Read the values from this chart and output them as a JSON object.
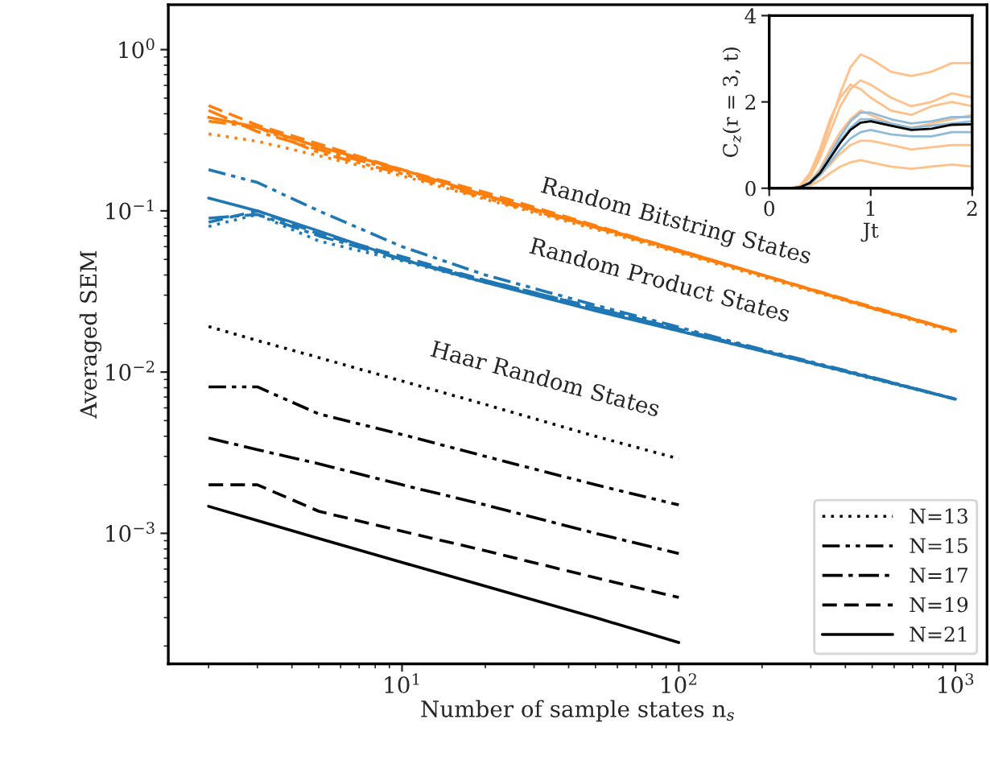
{
  "chart_data": [
    {
      "type": "line",
      "xlabel": "Number of sample states n$_{s}$",
      "ylabel": "Averaged SEM",
      "log": "xy",
      "xlim": [
        1.43,
        1300
      ],
      "ylim": [
        0.000155,
        1.9
      ],
      "xticks": [
        {
          "value": 10,
          "label": "10$^{1}$"
        },
        {
          "value": 100,
          "label": "10$^{2}$"
        },
        {
          "value": 1000,
          "label": "10$^{3}$"
        }
      ],
      "yticks": [
        {
          "value": 0.001,
          "label": "10$^{−3}$"
        },
        {
          "value": 0.01,
          "label": "10$^{−2}$"
        },
        {
          "value": 0.1,
          "label": "10$^{−1}$"
        },
        {
          "value": 1,
          "label": "10$^{0}$"
        }
      ],
      "grid": false,
      "legend": "bottom right",
      "marker": "none",
      "annotations": [
        "Random Bitstring States",
        "Random Product States",
        "Haar Random States"
      ],
      "series": [
        {
          "name": "N=13",
          "color": "#000000",
          "line_style": "dotted",
          "x": [
            2,
            3,
            5,
            10,
            20,
            50,
            100
          ],
          "values": [
            0.0192,
            0.0157,
            0.0123,
            0.0088,
            0.0063,
            0.004,
            0.0029
          ]
        },
        {
          "name": "N=15",
          "color": "#000000",
          "line_style": "dashdotdot",
          "x": [
            2,
            3,
            5,
            10,
            20,
            50,
            100
          ],
          "values": [
            0.0081,
            0.0081,
            0.0055,
            0.0041,
            0.003,
            0.002,
            0.0015
          ]
        },
        {
          "name": "N=17",
          "color": "#000000",
          "line_style": "dashdot",
          "x": [
            2,
            3,
            5,
            10,
            20,
            50,
            100
          ],
          "values": [
            0.0039,
            0.0033,
            0.0027,
            0.002,
            0.0015,
            0.001,
            0.00075
          ]
        },
        {
          "name": "N=19",
          "color": "#000000",
          "line_style": "dashed",
          "x": [
            2,
            3,
            5,
            10,
            20,
            50,
            100
          ],
          "values": [
            0.002,
            0.002,
            0.00137,
            0.00103,
            0.00078,
            0.00053,
            0.0004
          ]
        },
        {
          "name": "N=21",
          "color": "#000000",
          "line_style": "solid",
          "x": [
            2,
            3,
            5,
            10,
            20,
            50,
            100
          ],
          "values": [
            0.00147,
            0.0012,
            0.00093,
            0.00066,
            0.00047,
            0.0003,
            0.00021
          ]
        },
        {
          "color": "#ff7f0e",
          "line_style": "solid",
          "x": [
            2,
            3,
            5,
            10,
            20,
            50,
            100,
            200,
            500,
            1000
          ],
          "values": [
            0.38,
            0.33,
            0.25,
            0.18,
            0.125,
            0.08,
            0.057,
            0.04,
            0.025,
            0.018
          ]
        },
        {
          "color": "#ff7f0e",
          "line_style": "dashed",
          "x": [
            2,
            3,
            5,
            10,
            20,
            50,
            100,
            200,
            500,
            1000
          ],
          "values": [
            0.45,
            0.34,
            0.26,
            0.18,
            0.13,
            0.081,
            0.057,
            0.04,
            0.0254,
            0.018
          ]
        },
        {
          "color": "#ff7f0e",
          "line_style": "dashdot",
          "x": [
            2,
            3,
            5,
            10,
            20,
            50,
            100,
            200,
            500,
            1000
          ],
          "values": [
            0.42,
            0.31,
            0.24,
            0.175,
            0.124,
            0.079,
            0.056,
            0.04,
            0.025,
            0.018
          ]
        },
        {
          "color": "#ff7f0e",
          "line_style": "dashdotdot",
          "x": [
            2,
            3,
            5,
            10,
            20,
            50,
            100,
            200,
            500,
            1000
          ],
          "values": [
            0.36,
            0.33,
            0.23,
            0.17,
            0.12,
            0.079,
            0.056,
            0.04,
            0.025,
            0.018
          ]
        },
        {
          "color": "#ff7f0e",
          "line_style": "dotted",
          "x": [
            2,
            3,
            5,
            10,
            20,
            50,
            100,
            200,
            500,
            1000
          ],
          "values": [
            0.3,
            0.27,
            0.22,
            0.165,
            0.118,
            0.077,
            0.055,
            0.039,
            0.0248,
            0.0176
          ]
        },
        {
          "color": "#1f77b4",
          "line_style": "solid",
          "x": [
            2,
            3,
            5,
            10,
            20,
            50,
            100,
            200,
            500,
            1000
          ],
          "values": [
            0.12,
            0.1,
            0.075,
            0.05,
            0.036,
            0.024,
            0.018,
            0.0135,
            0.0092,
            0.0068
          ]
        },
        {
          "color": "#1f77b4",
          "line_style": "dashdotdot",
          "x": [
            2,
            3,
            5,
            10,
            20,
            50,
            100,
            200,
            500,
            1000
          ],
          "values": [
            0.18,
            0.15,
            0.1,
            0.06,
            0.04,
            0.026,
            0.019,
            0.0138,
            0.0093,
            0.0068
          ]
        },
        {
          "color": "#1f77b4",
          "line_style": "dashed",
          "x": [
            2,
            3,
            5,
            10,
            20,
            50,
            100,
            200,
            500,
            1000
          ],
          "values": [
            0.085,
            0.1,
            0.072,
            0.052,
            0.037,
            0.025,
            0.0185,
            0.0136,
            0.0092,
            0.0068
          ]
        },
        {
          "color": "#1f77b4",
          "line_style": "dashdot",
          "x": [
            2,
            3,
            5,
            10,
            20,
            50,
            100,
            200,
            500,
            1000
          ],
          "values": [
            0.09,
            0.095,
            0.07,
            0.05,
            0.037,
            0.025,
            0.0184,
            0.0136,
            0.0092,
            0.0068
          ]
        },
        {
          "color": "#1f77b4",
          "line_style": "dotted",
          "x": [
            2,
            3,
            5,
            10,
            20,
            50,
            100,
            200,
            500,
            1000
          ],
          "values": [
            0.08,
            0.095,
            0.065,
            0.049,
            0.036,
            0.0245,
            0.018,
            0.0135,
            0.0091,
            0.0068
          ]
        }
      ]
    },
    {
      "type": "line",
      "xlabel": "Jt",
      "ylabel": "C$_{z}$(r = 3, t)",
      "xlim": [
        0,
        2
      ],
      "ylim": [
        0,
        4
      ],
      "xticks": [
        0,
        1,
        2
      ],
      "yticks": [
        0,
        2,
        4
      ],
      "grid": false,
      "marker": "none",
      "x": [
        0,
        0.2,
        0.3,
        0.4,
        0.5,
        0.6,
        0.7,
        0.8,
        0.9,
        1.0,
        1.2,
        1.4,
        1.6,
        1.8,
        2.0
      ],
      "series": [
        {
          "color": "#ffc08a",
          "values": [
            0,
            0,
            0.05,
            0.3,
            0.8,
            1.5,
            2.2,
            2.8,
            3.1,
            3.0,
            2.7,
            2.6,
            2.7,
            2.9,
            2.9
          ]
        },
        {
          "color": "#ffc08a",
          "values": [
            0,
            0,
            0.04,
            0.25,
            0.7,
            1.3,
            1.9,
            2.3,
            2.5,
            2.4,
            2.1,
            1.9,
            2.0,
            2.2,
            2.1
          ]
        },
        {
          "color": "#ffc08a",
          "values": [
            0,
            0,
            0.03,
            0.15,
            0.45,
            0.9,
            1.3,
            1.6,
            1.8,
            1.7,
            1.5,
            1.4,
            1.5,
            1.6,
            1.7
          ]
        },
        {
          "color": "#ffc08a",
          "values": [
            0,
            0,
            0.02,
            0.1,
            0.3,
            0.55,
            0.8,
            1.0,
            1.1,
            1.1,
            1.0,
            0.9,
            0.95,
            1.0,
            1.0
          ]
        },
        {
          "color": "#ffc08a",
          "values": [
            0,
            0,
            0.01,
            0.06,
            0.18,
            0.35,
            0.5,
            0.6,
            0.65,
            0.6,
            0.5,
            0.45,
            0.5,
            0.55,
            0.5
          ]
        },
        {
          "color": "#ffc08a",
          "values": [
            0,
            0,
            0.05,
            0.35,
            0.9,
            1.6,
            2.1,
            2.4,
            2.3,
            2.1,
            1.8,
            1.7,
            1.9,
            2.0,
            1.9
          ]
        },
        {
          "color": "#8fbbd9",
          "values": [
            0,
            0,
            0.02,
            0.14,
            0.4,
            0.8,
            1.2,
            1.55,
            1.75,
            1.75,
            1.6,
            1.5,
            1.55,
            1.65,
            1.65
          ]
        },
        {
          "color": "#8fbbd9",
          "values": [
            0,
            0,
            0.02,
            0.1,
            0.3,
            0.6,
            0.9,
            1.15,
            1.3,
            1.35,
            1.25,
            1.2,
            1.2,
            1.3,
            1.3
          ]
        },
        {
          "color": "#8fbbd9",
          "values": [
            0,
            0,
            0.02,
            0.12,
            0.38,
            0.75,
            1.1,
            1.4,
            1.6,
            1.6,
            1.5,
            1.4,
            1.45,
            1.5,
            1.55
          ]
        },
        {
          "color": "#000000",
          "values": [
            0,
            0,
            0.02,
            0.12,
            0.35,
            0.7,
            1.05,
            1.35,
            1.52,
            1.55,
            1.45,
            1.35,
            1.38,
            1.47,
            1.48
          ]
        }
      ]
    }
  ]
}
